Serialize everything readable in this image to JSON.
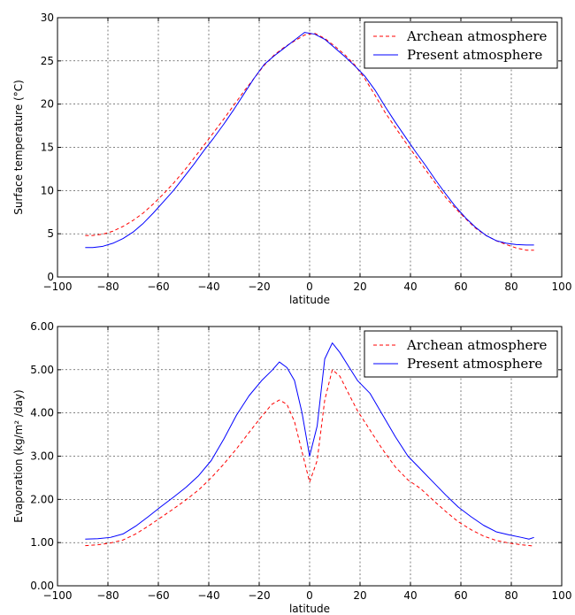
{
  "chart_data": [
    {
      "type": "line",
      "title": "",
      "xlabel": "latitude",
      "ylabel": "Surface temperature (°C)",
      "xlim": [
        -100,
        100
      ],
      "ylim": [
        0,
        30
      ],
      "xticks": [
        "−100",
        "−80",
        "−60",
        "−40",
        "−20",
        "0",
        "20",
        "40",
        "60",
        "80",
        "100"
      ],
      "yticks": [
        "0",
        "5",
        "10",
        "15",
        "20",
        "25",
        "30"
      ],
      "grid": true,
      "legend_position": "top-right",
      "series": [
        {
          "name": "Archean atmosphere",
          "color": "#ff0000",
          "style": "dashed",
          "x": [
            -89,
            -86,
            -82,
            -78,
            -74,
            -70,
            -66,
            -62,
            -58,
            -54,
            -50,
            -46,
            -42,
            -38,
            -34,
            -30,
            -26,
            -22,
            -18,
            -14,
            -10,
            -6,
            -2,
            2,
            6,
            10,
            14,
            18,
            22,
            26,
            30,
            34,
            38,
            42,
            46,
            50,
            54,
            58,
            62,
            66,
            70,
            74,
            78,
            82,
            86,
            89
          ],
          "y": [
            4.8,
            4.8,
            4.95,
            5.3,
            5.85,
            6.55,
            7.4,
            8.45,
            9.6,
            10.85,
            12.2,
            13.7,
            15.2,
            16.75,
            18.3,
            19.9,
            21.5,
            23.0,
            24.5,
            25.7,
            26.6,
            27.3,
            28.0,
            28.2,
            27.6,
            26.7,
            25.7,
            24.5,
            22.9,
            21.0,
            19.0,
            17.3,
            15.6,
            14.0,
            12.4,
            10.8,
            9.2,
            7.9,
            6.7,
            5.6,
            4.8,
            4.2,
            3.75,
            3.35,
            3.1,
            3.1
          ]
        },
        {
          "name": "Present atmosphere",
          "color": "#0000ff",
          "style": "solid",
          "x": [
            -89,
            -86,
            -82,
            -78,
            -74,
            -70,
            -66,
            -62,
            -58,
            -54,
            -50,
            -46,
            -42,
            -38,
            -34,
            -30,
            -26,
            -22,
            -18,
            -14,
            -10,
            -6,
            -2,
            2,
            6,
            10,
            14,
            18,
            22,
            26,
            30,
            34,
            38,
            42,
            46,
            50,
            54,
            58,
            62,
            66,
            70,
            74,
            78,
            82,
            86,
            89
          ],
          "y": [
            3.4,
            3.4,
            3.55,
            3.9,
            4.45,
            5.2,
            6.2,
            7.4,
            8.7,
            10.0,
            11.5,
            13.0,
            14.6,
            16.1,
            17.7,
            19.4,
            21.2,
            23.0,
            24.6,
            25.6,
            26.5,
            27.4,
            28.3,
            28.1,
            27.5,
            26.5,
            25.5,
            24.4,
            23.2,
            21.6,
            19.7,
            17.9,
            16.2,
            14.5,
            12.9,
            11.2,
            9.6,
            8.1,
            6.8,
            5.7,
            4.8,
            4.2,
            3.9,
            3.75,
            3.7,
            3.7
          ]
        }
      ]
    },
    {
      "type": "line",
      "title": "",
      "xlabel": "latitude",
      "ylabel": "Evaporation (kg/m² /day)",
      "xlim": [
        -100,
        100
      ],
      "ylim": [
        0,
        6
      ],
      "xticks": [
        "−100",
        "−80",
        "−60",
        "−40",
        "−20",
        "0",
        "20",
        "40",
        "60",
        "80",
        "100"
      ],
      "yticks": [
        "0.00",
        "1.00",
        "2.00",
        "3.00",
        "4.00",
        "5.00",
        "6.00"
      ],
      "grid": true,
      "legend_position": "top-right",
      "series": [
        {
          "name": "Archean atmosphere",
          "color": "#ff0000",
          "style": "dashed",
          "x": [
            -89,
            -84,
            -79,
            -74,
            -69,
            -64,
            -59,
            -54,
            -49,
            -44,
            -39,
            -34,
            -29,
            -24,
            -19,
            -15,
            -12,
            -9,
            -6,
            -3,
            0,
            3,
            6,
            9,
            12,
            15,
            19,
            24,
            29,
            34,
            39,
            44,
            49,
            54,
            59,
            64,
            69,
            74,
            79,
            84,
            89
          ],
          "y": [
            0.93,
            0.95,
            0.99,
            1.06,
            1.2,
            1.38,
            1.58,
            1.78,
            1.99,
            2.22,
            2.5,
            2.82,
            3.17,
            3.55,
            3.92,
            4.2,
            4.3,
            4.2,
            3.8,
            3.1,
            2.4,
            2.9,
            4.3,
            5.0,
            4.85,
            4.5,
            4.05,
            3.6,
            3.15,
            2.75,
            2.45,
            2.25,
            1.98,
            1.72,
            1.48,
            1.3,
            1.15,
            1.05,
            0.99,
            0.95,
            0.92
          ]
        },
        {
          "name": "Present atmosphere",
          "color": "#0000ff",
          "style": "solid",
          "x": [
            -89,
            -84,
            -79,
            -74,
            -69,
            -64,
            -59,
            -54,
            -49,
            -44,
            -39,
            -34,
            -29,
            -24,
            -19,
            -15,
            -12,
            -9,
            -6,
            -3,
            0,
            3,
            6,
            9,
            12,
            15,
            19,
            24,
            29,
            34,
            39,
            44,
            49,
            54,
            59,
            64,
            69,
            74,
            79,
            84,
            87,
            89
          ],
          "y": [
            1.08,
            1.09,
            1.12,
            1.2,
            1.38,
            1.6,
            1.83,
            2.05,
            2.28,
            2.55,
            2.9,
            3.4,
            3.95,
            4.4,
            4.75,
            4.98,
            5.18,
            5.05,
            4.75,
            4.0,
            3.0,
            3.7,
            5.25,
            5.62,
            5.4,
            5.12,
            4.75,
            4.45,
            3.95,
            3.45,
            3.0,
            2.7,
            2.4,
            2.1,
            1.82,
            1.6,
            1.4,
            1.25,
            1.18,
            1.12,
            1.08,
            1.12
          ]
        }
      ]
    }
  ]
}
